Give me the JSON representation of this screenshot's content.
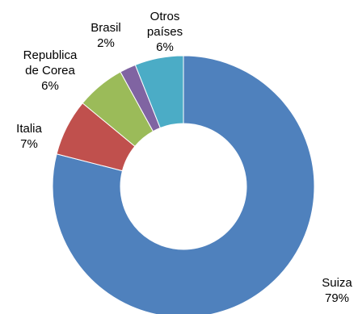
{
  "chart_data": {
    "type": "pie",
    "variant": "doughnut",
    "title": "",
    "legend": "none",
    "categories": [
      "Suiza",
      "Italia",
      "Republica de Corea",
      "Brasil",
      "Otros países"
    ],
    "values": [
      79,
      7,
      6,
      2,
      6
    ],
    "value_labels": [
      "79%",
      "7%",
      "6%",
      "2%",
      "6%"
    ],
    "label_lines": [
      [
        "Suiza"
      ],
      [
        "Italia"
      ],
      [
        "Republica",
        "de Corea"
      ],
      [
        "Brasil"
      ],
      [
        "Otros",
        "países"
      ]
    ],
    "colors": [
      "#4F81BD",
      "#C0504D",
      "#9BBB59",
      "#8064A2",
      "#4BACC6"
    ],
    "start": "12 o'clock",
    "direction": "clockwise"
  }
}
